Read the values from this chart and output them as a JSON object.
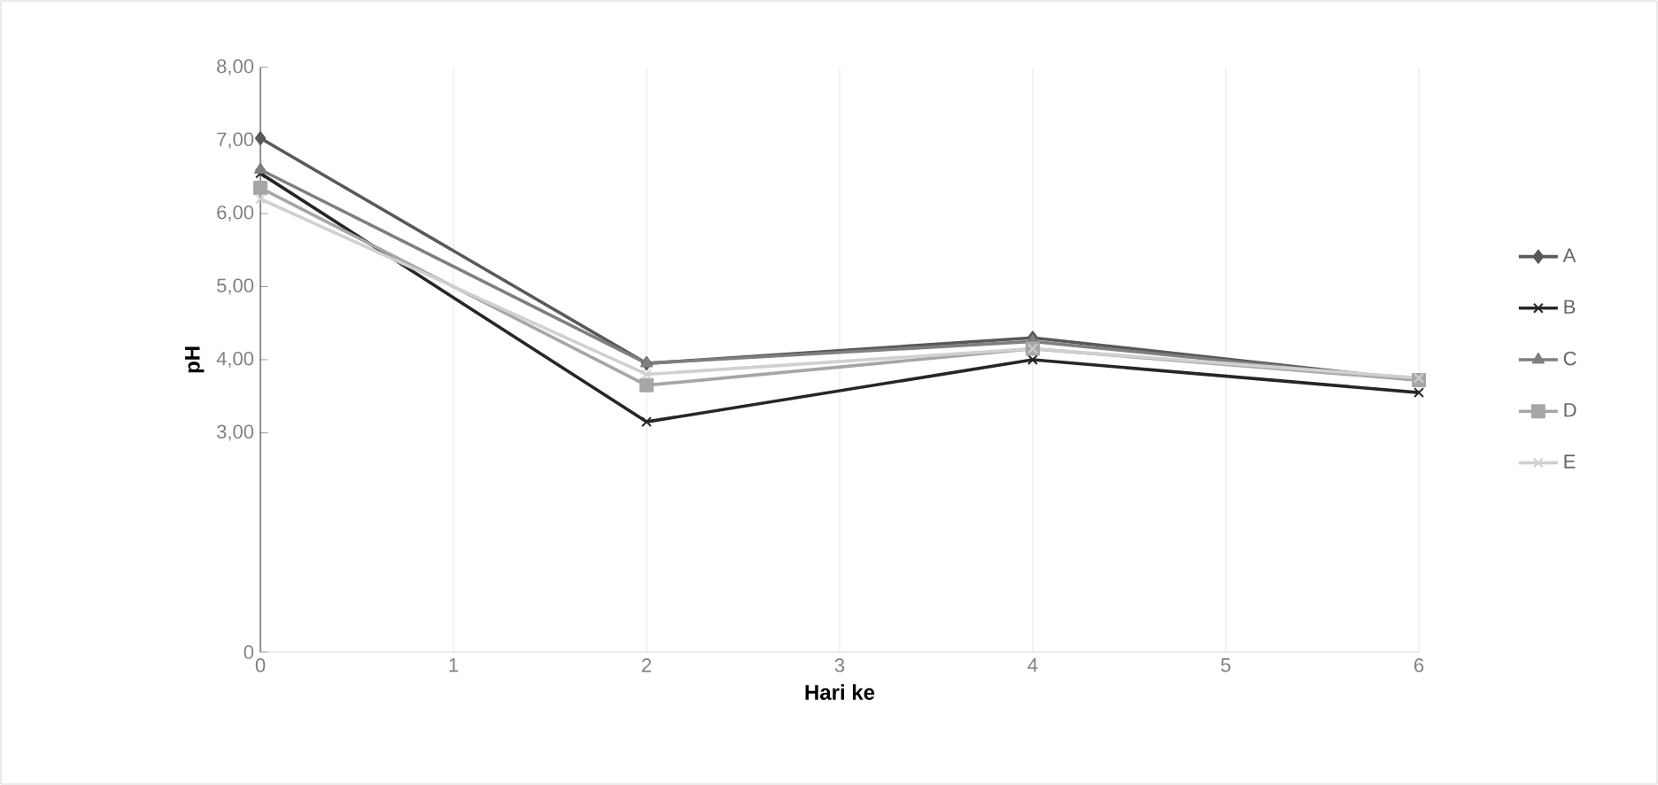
{
  "chart_data": {
    "type": "line",
    "xlabel": "Hari ke",
    "ylabel": "pH",
    "x": [
      0,
      2,
      4,
      6
    ],
    "series": [
      {
        "name": "A",
        "color": "#595959",
        "marker": "diamond",
        "values": [
          7.03,
          3.95,
          4.3,
          3.72
        ]
      },
      {
        "name": "B",
        "color": "#262626",
        "marker": "cross",
        "values": [
          6.55,
          3.15,
          4.0,
          3.55
        ]
      },
      {
        "name": "C",
        "color": "#7f7f7f",
        "marker": "triangle",
        "values": [
          6.6,
          3.95,
          4.25,
          3.72
        ]
      },
      {
        "name": "D",
        "color": "#a6a6a6",
        "marker": "square",
        "values": [
          6.35,
          3.65,
          4.15,
          3.72
        ]
      },
      {
        "name": "E",
        "color": "#d0d0d0",
        "marker": "cross",
        "values": [
          6.2,
          3.8,
          4.15,
          3.75
        ]
      }
    ],
    "xlim": [
      0,
      6
    ],
    "xticks": [
      0,
      1,
      2,
      3,
      4,
      5,
      6
    ],
    "ylim": [
      0,
      8
    ],
    "yticks": [
      0,
      {
        "value": 3,
        "label": "3,00"
      },
      {
        "value": 4,
        "label": "4,00"
      },
      {
        "value": 5,
        "label": "5,00"
      },
      {
        "value": 6,
        "label": "6,00"
      },
      {
        "value": 7,
        "label": "7,00"
      },
      {
        "value": 8,
        "label": "8,00"
      }
    ],
    "grid": "x",
    "legend": "right"
  }
}
